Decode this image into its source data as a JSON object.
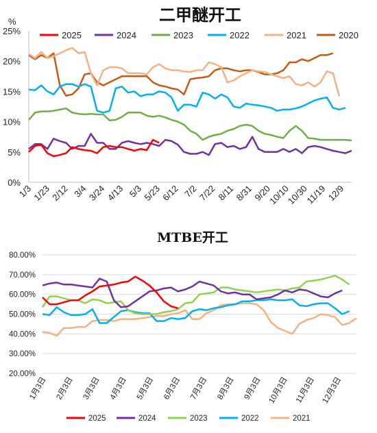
{
  "chart_data": [
    {
      "type": "line",
      "title": "二甲醚开工",
      "ylabel": "%",
      "ylim": [
        0,
        25
      ],
      "yticks": [
        "0%",
        "5%",
        "10%",
        "15%",
        "20%",
        "25%"
      ],
      "xticks": [
        "1/3",
        "1/23",
        "2/12",
        "3/4",
        "3/24",
        "4/13",
        "5/3",
        "5/23",
        "6/12",
        "7/2",
        "7/22",
        "8/11",
        "8/31",
        "9/20",
        "10/10",
        "10/30",
        "11/19",
        "12/9"
      ],
      "legend_position": "top",
      "grid": false,
      "colors": {
        "2025": "#ff0000",
        "2024": "#7030a0",
        "2023": "#70ad47",
        "2022": "#00b0f0",
        "2021": "#f4b183",
        "2020": "#c55a11"
      },
      "series": [
        {
          "name": "2025",
          "values": [
            5.0,
            6.0,
            6.2,
            4.8,
            4.3,
            4.5,
            4.8,
            5.8,
            5.5,
            5.3,
            5.2,
            4.8,
            5.8,
            6.0,
            5.8,
            5.8,
            5.5,
            5.2,
            5.5,
            5.3,
            7.0,
            6.5
          ]
        },
        {
          "name": "2024",
          "values": [
            5.5,
            6.3,
            6.3,
            5.5,
            7.2,
            6.8,
            6.5,
            5.5,
            6.0,
            6.0,
            8.0,
            6.5,
            6.5,
            5.5,
            5.5,
            6.5,
            6.8,
            6.5,
            6.3,
            6.5,
            6.3,
            6.0,
            7.0,
            6.8,
            6.2,
            5.0,
            4.7,
            4.7,
            5.0,
            4.5,
            6.3,
            6.5,
            5.8,
            6.0,
            5.5,
            5.8,
            7.5,
            5.5,
            5.0,
            5.0,
            5.0,
            5.5,
            5.0,
            5.5,
            4.8,
            5.8,
            6.0,
            5.8,
            5.5,
            5.2,
            5.0,
            4.8,
            5.2
          ]
        },
        {
          "name": "2023",
          "values": [
            10.3,
            11.5,
            11.7,
            11.7,
            11.8,
            12.0,
            12.2,
            11.5,
            11.3,
            11.2,
            11.3,
            11.2,
            11.2,
            10.2,
            10.3,
            10.8,
            11.5,
            11.5,
            11.5,
            11.0,
            10.8,
            11.0,
            10.7,
            10.3,
            10.0,
            9.5,
            8.5,
            8.0,
            7.0,
            7.5,
            7.8,
            8.0,
            8.5,
            8.8,
            9.3,
            9.5,
            9.3,
            8.5,
            8.0,
            7.8,
            7.5,
            7.3,
            8.5,
            9.3,
            8.5,
            7.3,
            7.2,
            7.0,
            7.0,
            7.0,
            7.0,
            7.0,
            6.9
          ]
        },
        {
          "name": "2022",
          "values": [
            15.3,
            15.2,
            16.0,
            15.0,
            14.5,
            15.8,
            16.2,
            16.2,
            15.8,
            16.2,
            15.8,
            11.8,
            11.5,
            11.8,
            15.5,
            15.8,
            14.8,
            15.0,
            14.2,
            14.5,
            14.5,
            15.0,
            14.8,
            14.0,
            11.8,
            12.8,
            12.8,
            12.5,
            14.8,
            14.5,
            13.8,
            14.5,
            14.0,
            12.5,
            12.3,
            13.0,
            12.8,
            12.7,
            12.5,
            12.3,
            11.8,
            12.0,
            12.0,
            12.2,
            12.5,
            13.0,
            13.5,
            13.8,
            14.0,
            12.3,
            12.0,
            12.3
          ]
        },
        {
          "name": "2021",
          "values": [
            21.2,
            20.5,
            21.5,
            20.5,
            20.8,
            21.3,
            21.8,
            22.2,
            21.3,
            21.5,
            18.0,
            16.0,
            18.5,
            19.0,
            19.0,
            18.8,
            18.0,
            18.0,
            18.0,
            17.8,
            19.0,
            19.5,
            18.8,
            18.5,
            18.5,
            18.3,
            18.2,
            18.5,
            18.5,
            19.8,
            19.5,
            19.0,
            16.5,
            16.8,
            17.5,
            18.0,
            18.5,
            18.3,
            18.2,
            17.8,
            17.5,
            17.2,
            17.5,
            16.2,
            16.0,
            16.5,
            15.8,
            16.5,
            18.3,
            18.0,
            14.2
          ]
        },
        {
          "name": "2020",
          "values": [
            21.0,
            20.3,
            21.0,
            20.5,
            21.3,
            16.0,
            14.3,
            14.5,
            15.5,
            17.8,
            18.0,
            16.5,
            16.0,
            16.5,
            17.0,
            17.5,
            17.5,
            17.5,
            17.5,
            17.5,
            16.5,
            16.0,
            15.8,
            15.5,
            15.3,
            14.5,
            17.0,
            17.2,
            17.3,
            17.5,
            18.5,
            18.8,
            18.8,
            18.5,
            18.3,
            18.5,
            18.5,
            18.2,
            17.8,
            17.8,
            18.0,
            18.5,
            19.8,
            19.8,
            20.3,
            20.0,
            20.5,
            21.0,
            21.0,
            21.3
          ]
        }
      ]
    },
    {
      "type": "line",
      "title": "MTBE开工",
      "ylim": [
        20,
        80
      ],
      "yticks": [
        "20.00%",
        "30.00%",
        "40.00%",
        "50.00%",
        "60.00%",
        "70.00%",
        "80.00%"
      ],
      "xticks": [
        "1月3日",
        "2月3日",
        "3月3日",
        "4月3日",
        "5月3日",
        "6月3日",
        "7月3日",
        "8月3日",
        "9月3日",
        "10月3日",
        "11月3日",
        "12月3日"
      ],
      "legend_position": "bottom",
      "grid": true,
      "colors": {
        "2025": "#ff0000",
        "2024": "#7030a0",
        "2023": "#92d050",
        "2022": "#00b0f0",
        "2021": "#f4b183"
      },
      "series": [
        {
          "name": "2025",
          "values": [
            58.5,
            55.0,
            55.0,
            56.0,
            57.0,
            57.0,
            59.5,
            61.5,
            64.0,
            64.5,
            65.0,
            66.0,
            66.5,
            69.0,
            67.0,
            64.5,
            61.0,
            56.5,
            54.0,
            53.0
          ]
        },
        {
          "name": "2024",
          "values": [
            64.5,
            65.5,
            66.0,
            65.0,
            65.0,
            64.5,
            64.0,
            63.5,
            68.0,
            66.5,
            57.0,
            53.5,
            54.0,
            56.5,
            59.0,
            61.5,
            62.0,
            63.0,
            63.5,
            61.5,
            62.5,
            64.0,
            66.5,
            65.5,
            64.5,
            61.5,
            60.5,
            61.0,
            60.0,
            60.0,
            57.5,
            58.0,
            58.5,
            60.0,
            62.0,
            61.0,
            62.5,
            62.0,
            60.5,
            59.0,
            58.5,
            60.5,
            62.0
          ]
        },
        {
          "name": "2023",
          "values": [
            53.5,
            59.0,
            59.0,
            58.0,
            57.0,
            57.0,
            55.5,
            57.5,
            57.0,
            55.5,
            56.0,
            56.5,
            52.0,
            50.5,
            50.0,
            50.0,
            50.0,
            51.0,
            51.5,
            52.5,
            55.5,
            56.0,
            60.0,
            60.5,
            61.0,
            63.5,
            63.5,
            62.5,
            62.0,
            61.5,
            61.0,
            61.5,
            62.0,
            62.5,
            62.0,
            63.0,
            63.5,
            66.5,
            67.0,
            67.5,
            68.5,
            69.5,
            67.5,
            65.0
          ]
        },
        {
          "name": "2022",
          "values": [
            50.0,
            49.5,
            53.5,
            51.0,
            49.5,
            49.5,
            50.0,
            52.5,
            45.5,
            45.5,
            48.5,
            51.5,
            52.0,
            51.0,
            50.5,
            50.5,
            46.5,
            46.5,
            48.0,
            47.5,
            48.0,
            51.5,
            52.5,
            52.0,
            53.0,
            53.5,
            54.5,
            55.0,
            56.5,
            56.5,
            57.0,
            57.0,
            57.5,
            57.0,
            57.0,
            57.5,
            54.5,
            54.0,
            55.0,
            55.5,
            55.5,
            53.0,
            50.0,
            51.5
          ]
        },
        {
          "name": "2021",
          "values": [
            41.0,
            40.5,
            39.0,
            43.0,
            43.0,
            43.5,
            43.5,
            46.5,
            47.0,
            47.0,
            46.5,
            47.5,
            47.5,
            47.5,
            48.0,
            48.5,
            49.0,
            49.0,
            50.0,
            50.5,
            52.0,
            47.5,
            47.5,
            50.5,
            52.0,
            54.5,
            55.0,
            55.0,
            55.5,
            55.5,
            55.0,
            52.0,
            46.0,
            43.0,
            41.5,
            40.0,
            45.0,
            47.0,
            48.0,
            50.0,
            49.5,
            48.5,
            44.5,
            45.5,
            48.0
          ]
        }
      ]
    }
  ]
}
